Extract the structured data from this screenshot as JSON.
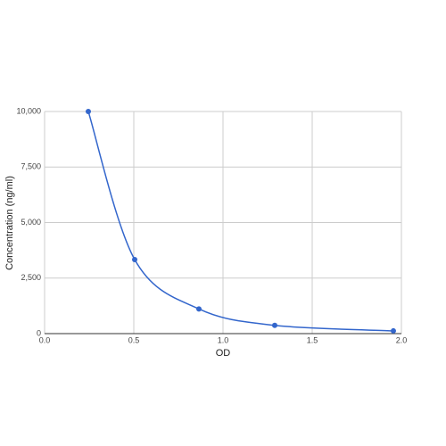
{
  "chart_data": {
    "type": "scatter",
    "x_label": "OD",
    "y_label": "Concentration (ng/ml)",
    "series": [
      {
        "color": "#3366cc",
        "x": [
          0.245,
          0.505,
          0.865,
          1.29,
          1.955
        ],
        "values": [
          10000,
          3333,
          1111,
          370,
          123
        ]
      }
    ],
    "xlim": [
      0,
      2
    ],
    "ylim": [
      0,
      10000
    ],
    "xticks": [
      {
        "value": 0,
        "label": "0.0"
      },
      0.5,
      {
        "value": 1,
        "label": "1.0"
      },
      1.5,
      {
        "value": 2,
        "label": "2.0"
      }
    ],
    "yticks": [
      0,
      {
        "value": 2500,
        "label": "2,500"
      },
      {
        "value": 5000,
        "label": "5,000"
      },
      {
        "value": 7500,
        "label": "7,500"
      },
      {
        "value": 10000,
        "label": "10,000"
      }
    ],
    "grid": true,
    "smooth": true
  }
}
